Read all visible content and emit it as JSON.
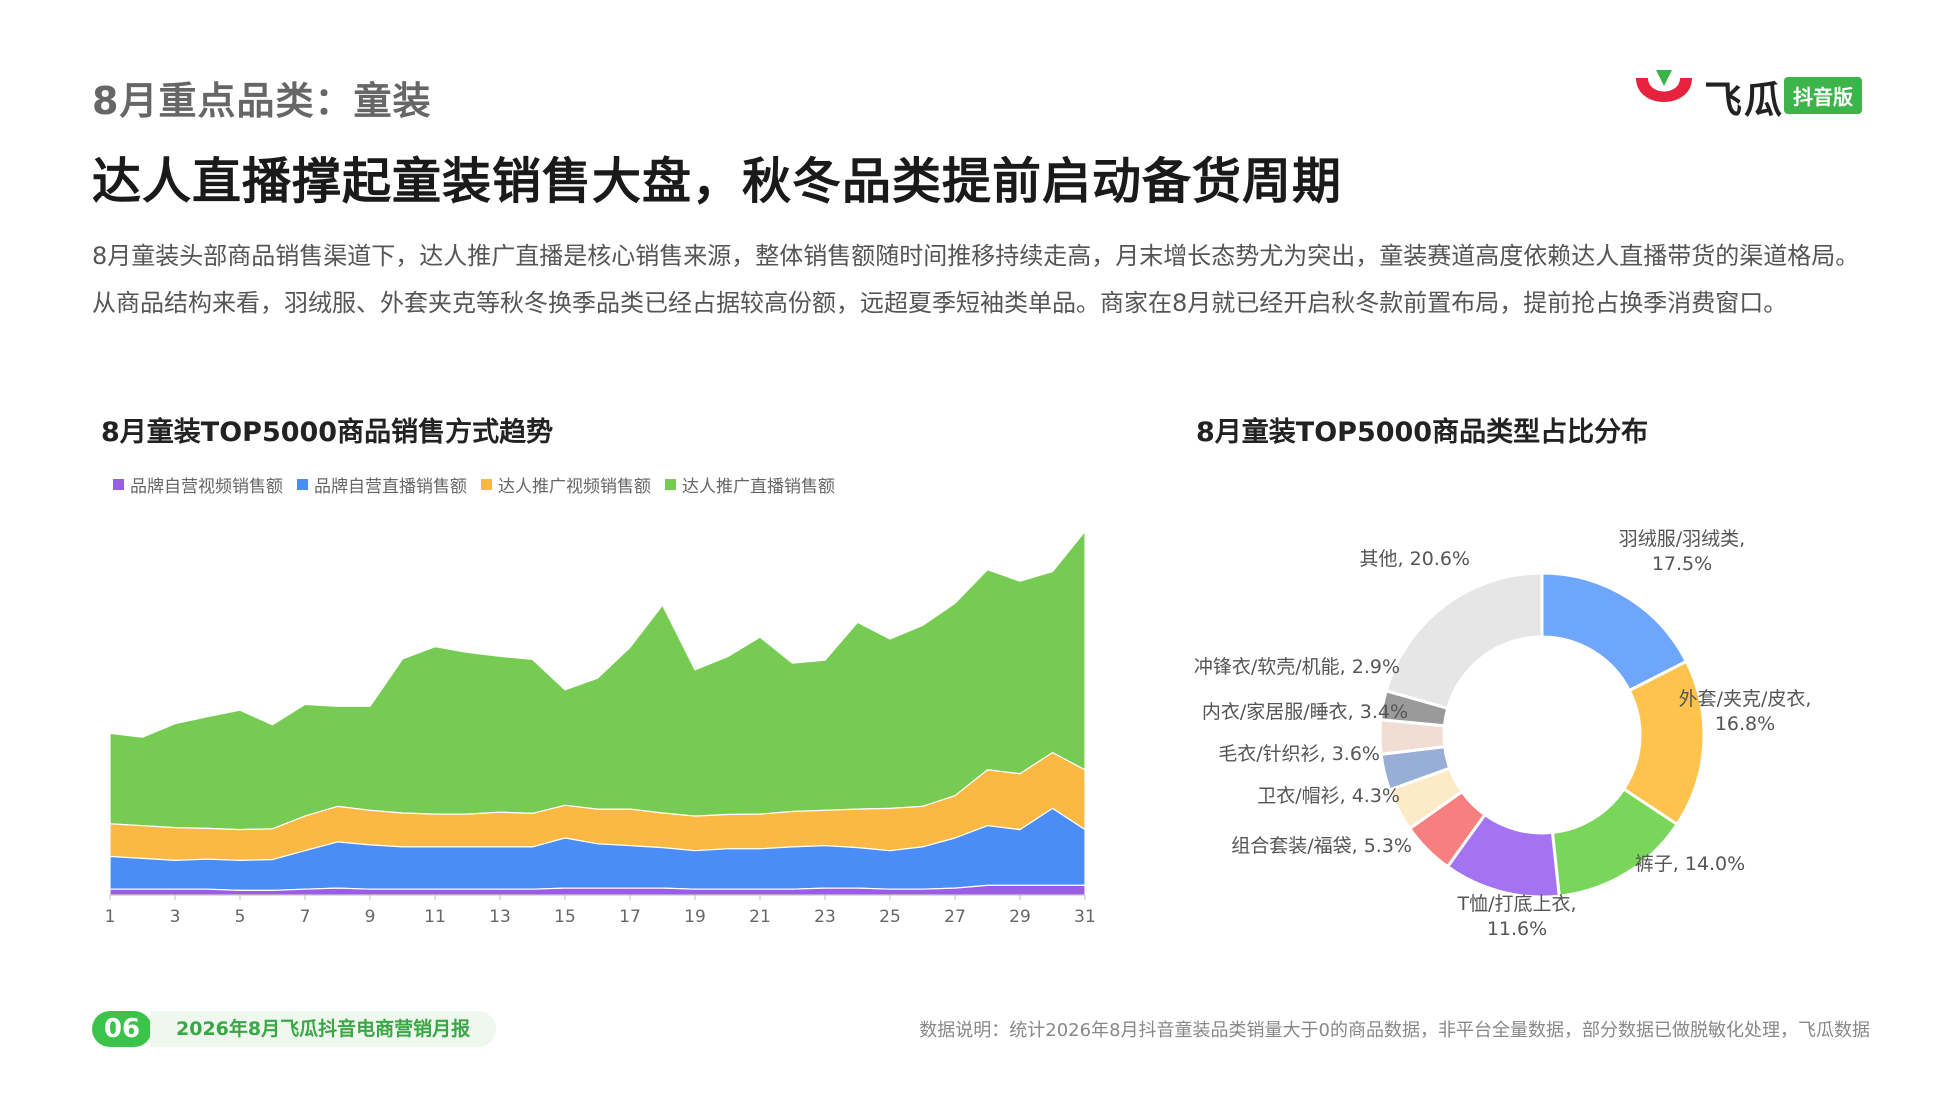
{
  "header": {
    "kicker": "8月重点品类：童装",
    "headline": "达人直播撑起童装销售大盘，秋冬品类提前启动备货周期",
    "intro": "8月童装头部商品销售渠道下，达人推广直播是核心销售来源，整体销售额随时间推移持续走高，月末增长态势尤为突出，童装赛道高度依赖达人直播带货的渠道格局。从商品结构来看，羽绒服、外套夹克等秋冬换季品类已经占据较高份额，远超夏季短袖类单品。商家在8月就已经开启秋冬款前置布局，提前抢占换季消费窗口。"
  },
  "logo": {
    "text": "飞瓜",
    "badge": "抖音版",
    "colors": {
      "red": "#e8213c",
      "green": "#3cb44a"
    }
  },
  "footer": {
    "page_number": "06",
    "report_name": "2026年8月飞瓜抖音电商营销月报",
    "note": "数据说明：统计2026年8月抖音童装品类销量大于0的商品数据，非平台全量数据，部分数据已做脱敏化处理，飞瓜数据"
  },
  "chart_data": [
    {
      "type": "area",
      "stacked": true,
      "title": "8月童装TOP5000商品销售方式趋势",
      "x": [
        1,
        2,
        3,
        4,
        5,
        6,
        7,
        8,
        9,
        10,
        11,
        12,
        13,
        14,
        15,
        16,
        17,
        18,
        19,
        20,
        21,
        22,
        23,
        24,
        25,
        26,
        27,
        28,
        29,
        30,
        31
      ],
      "x_ticks": [
        "1",
        "3",
        "5",
        "7",
        "9",
        "11",
        "13",
        "15",
        "17",
        "19",
        "21",
        "23",
        "25",
        "27",
        "29",
        "31"
      ],
      "y_axis_visible": false,
      "ylim": [
        0,
        100
      ],
      "legend_position": "top-left",
      "series": [
        {
          "name": "品牌自营视频销售额",
          "color": "#9b5de5",
          "values": [
            1.5,
            1.5,
            1.5,
            1.5,
            1.2,
            1.2,
            1.5,
            1.8,
            1.5,
            1.5,
            1.5,
            1.5,
            1.5,
            1.5,
            1.8,
            1.8,
            1.8,
            1.8,
            1.5,
            1.5,
            1.5,
            1.5,
            1.8,
            1.8,
            1.5,
            1.5,
            1.8,
            2.5,
            2.5,
            2.5,
            2.5
          ]
        },
        {
          "name": "品牌自营直播销售额",
          "color": "#4a8df6",
          "values": [
            8.5,
            8,
            7.5,
            7.8,
            7.8,
            8,
            10,
            12,
            11.5,
            11,
            11,
            11,
            11,
            11,
            13,
            11.5,
            11,
            10.5,
            10,
            10.5,
            10.5,
            11,
            11,
            10.5,
            10,
            11,
            13,
            15.5,
            14.5,
            20,
            14.5
          ]
        },
        {
          "name": "达人推广视频销售额",
          "color": "#fbb843",
          "values": [
            8.5,
            8.5,
            8.5,
            8,
            8,
            8,
            9,
            9.2,
            9,
            8.8,
            8.5,
            8.5,
            9,
            8.7,
            8.5,
            9,
            9.5,
            9,
            9,
            8.9,
            9,
            9.2,
            9.2,
            10,
            11,
            10.5,
            11,
            14.5,
            14.5,
            14.5,
            15.5
          ]
        },
        {
          "name": "达人推广直播销售额",
          "color": "#76cc52",
          "values": [
            23.5,
            23,
            27,
            29,
            31,
            27,
            29,
            26,
            27,
            40,
            43.5,
            42,
            40.5,
            40,
            30,
            34,
            42,
            54,
            38,
            41,
            46,
            38.5,
            39,
            48.5,
            44,
            47,
            50,
            52,
            50,
            47,
            62
          ]
        }
      ]
    },
    {
      "type": "pie",
      "donut": true,
      "title": "8月童装TOP5000商品类型占比分布",
      "slices": [
        {
          "label": "羽绒服/羽绒类",
          "value": 17.5,
          "color": "#6ea6fb"
        },
        {
          "label": "外套/夹克/皮衣",
          "value": 16.8,
          "color": "#fdc34d"
        },
        {
          "label": "裤子",
          "value": 14.0,
          "color": "#7ad65a"
        },
        {
          "label": "T恤/打底上衣",
          "value": 11.6,
          "color": "#a373f2"
        },
        {
          "label": "组合套装/福袋",
          "value": 5.3,
          "color": "#f77f7f"
        },
        {
          "label": "卫衣/帽衫",
          "value": 4.3,
          "color": "#fdebc8"
        },
        {
          "label": "毛衣/针织衫",
          "value": 3.6,
          "color": "#98aed6"
        },
        {
          "label": "内衣/家居服/睡衣",
          "value": 3.4,
          "color": "#f0ddd4"
        },
        {
          "label": "冲锋衣/软壳/机能",
          "value": 2.9,
          "color": "#9a9a9a"
        },
        {
          "label": "其他",
          "value": 20.6,
          "color": "#e6e6e6"
        }
      ],
      "labels": [
        "羽绒服/羽绒类,\n17.5%",
        "外套/夹克/皮衣,\n16.8%",
        "裤子, 14.0%",
        "T恤/打底上衣,\n11.6%",
        "组合套装/福袋, 5.3%",
        "卫衣/帽衫, 4.3%",
        "毛衣/针织衫, 3.6%",
        "内衣/家居服/睡衣, 3.4%",
        "冲锋衣/软壳/机能, 2.9%",
        "其他, 20.6%"
      ]
    }
  ]
}
